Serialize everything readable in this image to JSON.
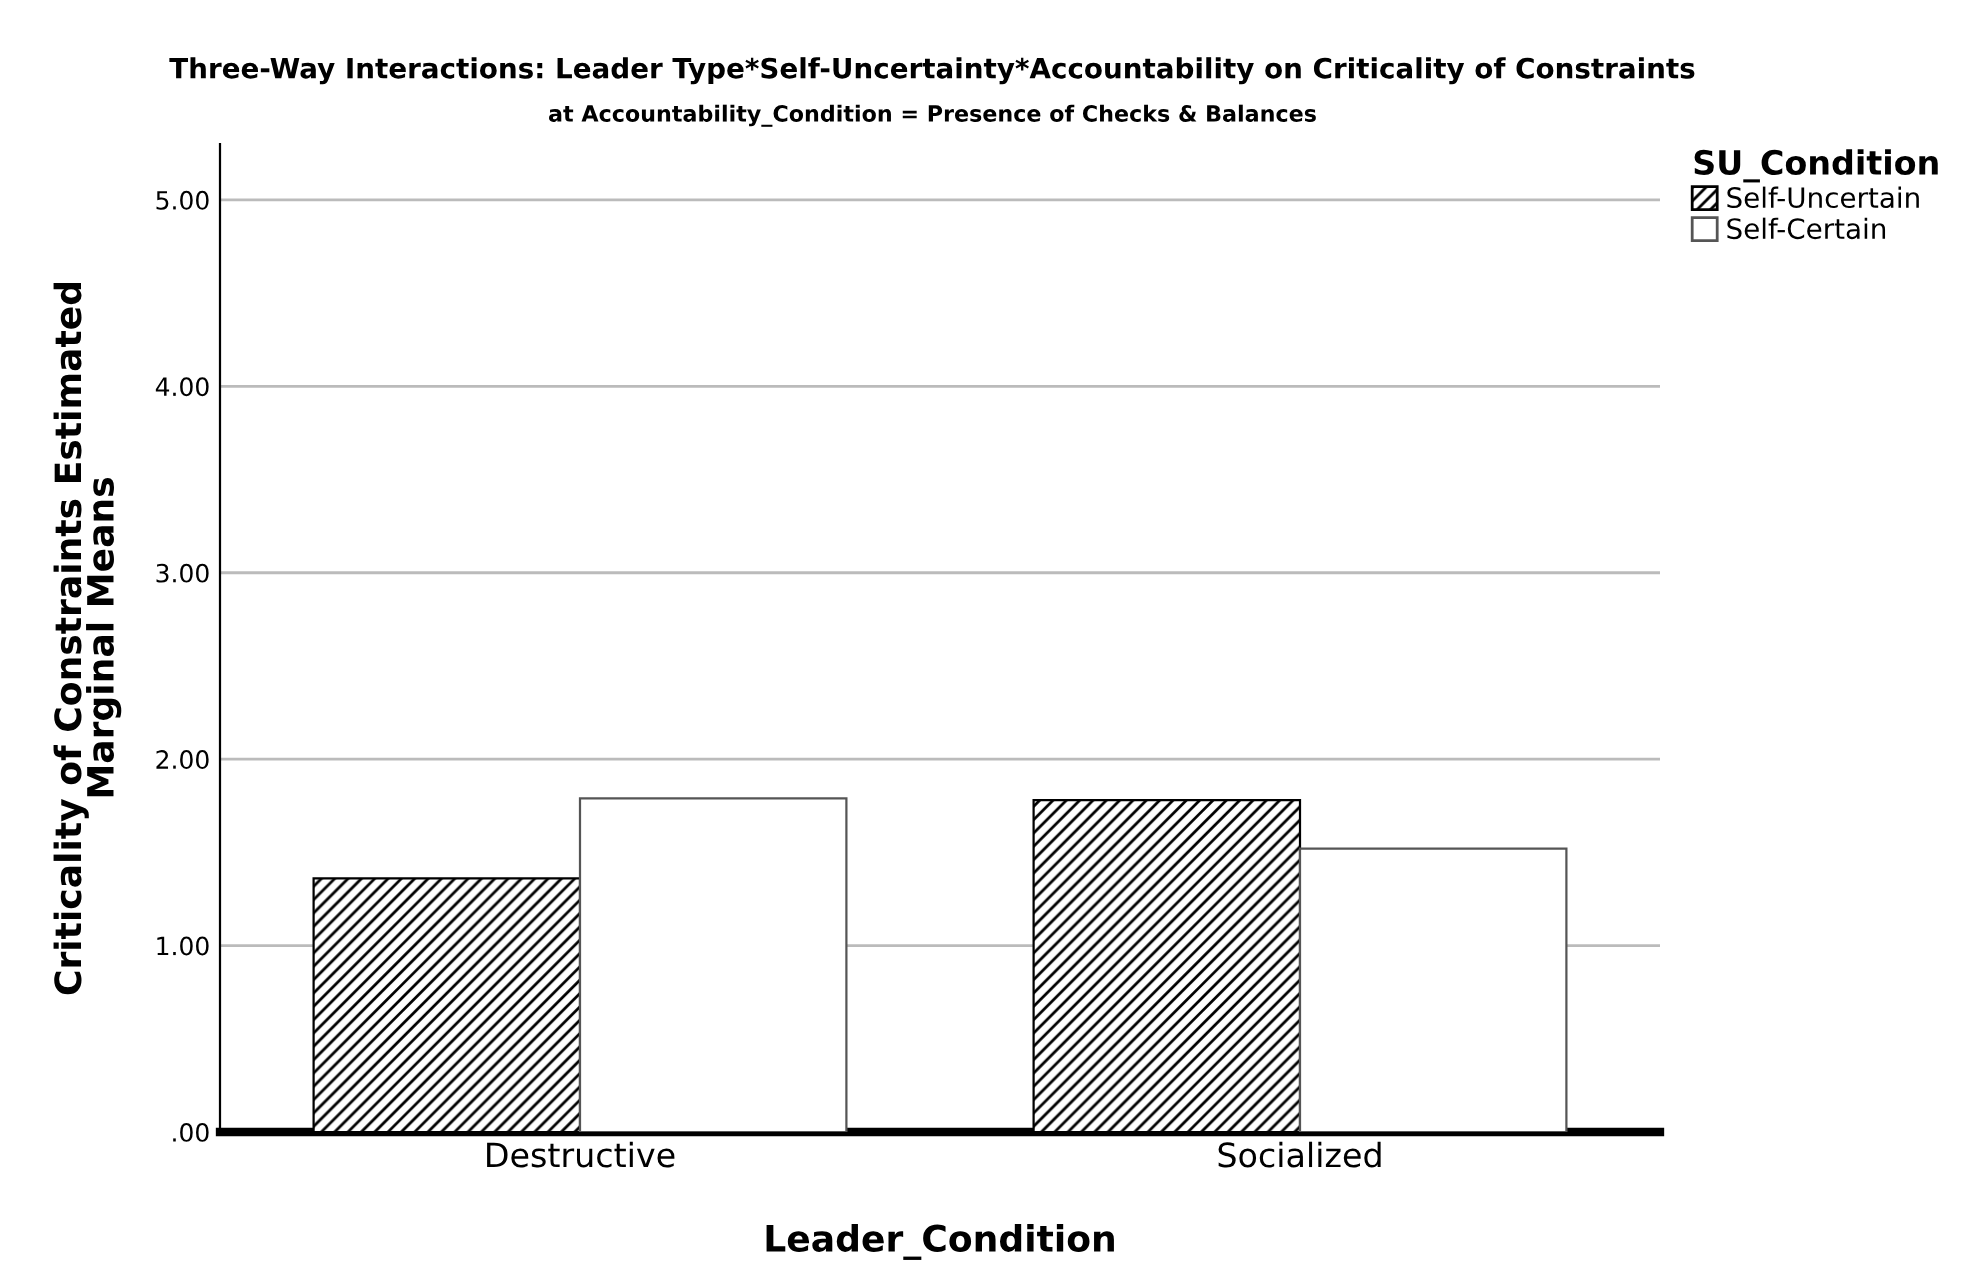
{
  "chart_data": {
    "type": "bar",
    "title": "Three-Way Interactions: Leader Type*Self-Uncertainty*Accountability on Criticality of Constraints",
    "subtitle": "at Accountability_Condition = Presence of Checks & Balances",
    "xlabel": "Leader_Condition",
    "ylabel": "Criticality of Constraints Estimated\nMarginal Means",
    "legend_title": "SU_Condition",
    "categories": [
      "Destructive",
      "Socialized"
    ],
    "series": [
      {
        "name": "Self-Uncertain",
        "color": "#000000",
        "values": [
          1.36,
          1.78
        ]
      },
      {
        "name": "Self-Certain",
        "color": "#555555",
        "values": [
          1.79,
          1.52
        ]
      }
    ],
    "ylim": [
      0,
      5.3
    ],
    "yticks": [
      {
        "value": 0,
        "label": ".00"
      },
      {
        "value": 1,
        "label": "1.00"
      },
      {
        "value": 2,
        "label": "2.00"
      },
      {
        "value": 3,
        "label": "3.00"
      },
      {
        "value": 4,
        "label": "4.00"
      },
      {
        "value": 5,
        "label": "5.00"
      }
    ],
    "grid": "y",
    "legend": "top right"
  }
}
